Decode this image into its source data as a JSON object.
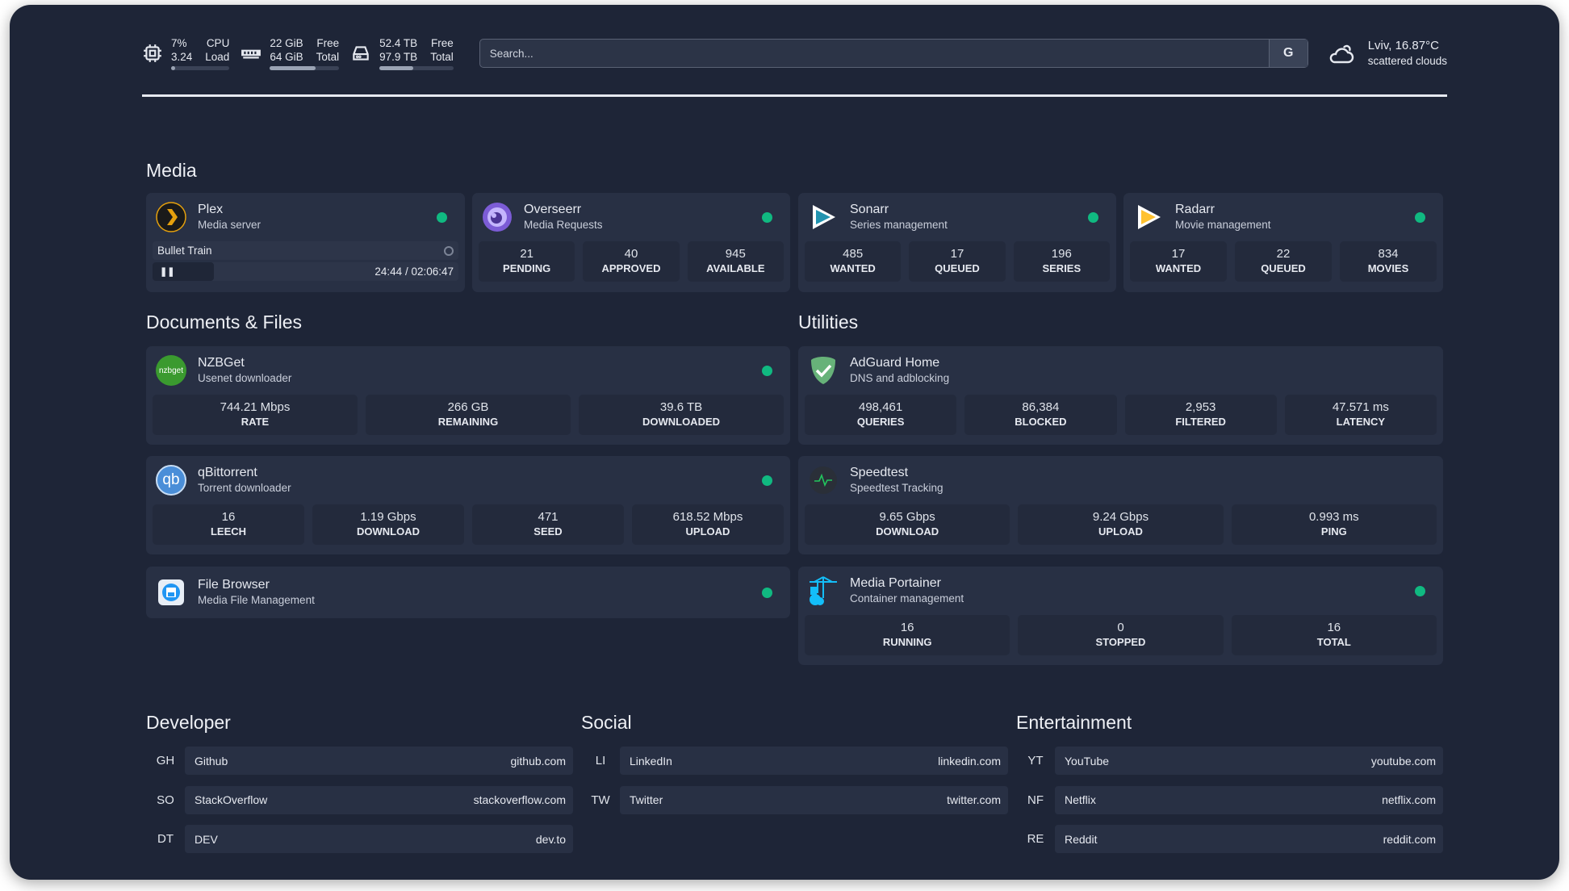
{
  "header": {
    "cpu": {
      "icon": "cpu-icon",
      "value1": "7%",
      "label1": "CPU",
      "value2": "3.24",
      "label2": "Load",
      "percent": 7
    },
    "ram": {
      "icon": "memory-icon",
      "value1": "22 GiB",
      "label1": "Free",
      "value2": "64 GiB",
      "label2": "Total",
      "percent": 66
    },
    "disk": {
      "icon": "disk-icon",
      "value1": "52.4 TB",
      "label1": "Free",
      "value2": "97.9 TB",
      "label2": "Total",
      "percent": 46
    },
    "search": {
      "placeholder": "Search...",
      "engine": "G"
    },
    "weather": {
      "icon": "cloud-icon",
      "location": "Lviv, 16.87°C",
      "condition": "scattered clouds"
    }
  },
  "sections": {
    "media": "Media",
    "documents": "Documents & Files",
    "utilities": "Utilities",
    "developer": "Developer",
    "social": "Social",
    "entertainment": "Entertainment"
  },
  "media": {
    "plex": {
      "title": "Plex",
      "subtitle": "Media server",
      "now_playing": "Bullet Train",
      "time": "24:44 / 02:06:47",
      "progress_percent": 20
    },
    "overseerr": {
      "title": "Overseerr",
      "subtitle": "Media Requests",
      "stats": [
        {
          "v": "21",
          "l": "PENDING"
        },
        {
          "v": "40",
          "l": "APPROVED"
        },
        {
          "v": "945",
          "l": "AVAILABLE"
        }
      ]
    },
    "sonarr": {
      "title": "Sonarr",
      "subtitle": "Series management",
      "stats": [
        {
          "v": "485",
          "l": "WANTED"
        },
        {
          "v": "17",
          "l": "QUEUED"
        },
        {
          "v": "196",
          "l": "SERIES"
        }
      ]
    },
    "radarr": {
      "title": "Radarr",
      "subtitle": "Movie management",
      "stats": [
        {
          "v": "17",
          "l": "WANTED"
        },
        {
          "v": "22",
          "l": "QUEUED"
        },
        {
          "v": "834",
          "l": "MOVIES"
        }
      ]
    }
  },
  "documents": {
    "nzbget": {
      "title": "NZBGet",
      "subtitle": "Usenet downloader",
      "logo": "nzbget",
      "stats": [
        {
          "v": "744.21 Mbps",
          "l": "RATE"
        },
        {
          "v": "266 GB",
          "l": "REMAINING"
        },
        {
          "v": "39.6 TB",
          "l": "DOWNLOADED"
        }
      ]
    },
    "qbittorrent": {
      "title": "qBittorrent",
      "subtitle": "Torrent downloader",
      "logo": "qb",
      "stats": [
        {
          "v": "16",
          "l": "LEECH"
        },
        {
          "v": "1.19 Gbps",
          "l": "DOWNLOAD"
        },
        {
          "v": "471",
          "l": "SEED"
        },
        {
          "v": "618.52 Mbps",
          "l": "UPLOAD"
        }
      ]
    },
    "filebrowser": {
      "title": "File Browser",
      "subtitle": "Media File Management"
    }
  },
  "utilities": {
    "adguard": {
      "title": "AdGuard Home",
      "subtitle": "DNS and adblocking",
      "stats": [
        {
          "v": "498,461",
          "l": "QUERIES"
        },
        {
          "v": "86,384",
          "l": "BLOCKED"
        },
        {
          "v": "2,953",
          "l": "FILTERED"
        },
        {
          "v": "47.571 ms",
          "l": "LATENCY"
        }
      ]
    },
    "speedtest": {
      "title": "Speedtest",
      "subtitle": "Speedtest Tracking",
      "stats": [
        {
          "v": "9.65 Gbps",
          "l": "DOWNLOAD"
        },
        {
          "v": "9.24 Gbps",
          "l": "UPLOAD"
        },
        {
          "v": "0.993 ms",
          "l": "PING"
        }
      ]
    },
    "portainer": {
      "title": "Media Portainer",
      "subtitle": "Container management",
      "stats": [
        {
          "v": "16",
          "l": "RUNNING"
        },
        {
          "v": "0",
          "l": "STOPPED"
        },
        {
          "v": "16",
          "l": "TOTAL"
        }
      ]
    }
  },
  "bookmarks": {
    "developer": [
      {
        "abbr": "GH",
        "name": "Github",
        "url": "github.com"
      },
      {
        "abbr": "SO",
        "name": "StackOverflow",
        "url": "stackoverflow.com"
      },
      {
        "abbr": "DT",
        "name": "DEV",
        "url": "dev.to"
      }
    ],
    "social": [
      {
        "abbr": "LI",
        "name": "LinkedIn",
        "url": "linkedin.com"
      },
      {
        "abbr": "TW",
        "name": "Twitter",
        "url": "twitter.com"
      }
    ],
    "entertainment": [
      {
        "abbr": "YT",
        "name": "YouTube",
        "url": "youtube.com"
      },
      {
        "abbr": "NF",
        "name": "Netflix",
        "url": "netflix.com"
      },
      {
        "abbr": "RE",
        "name": "Reddit",
        "url": "reddit.com"
      }
    ]
  },
  "colors": {
    "background": "#1e2537",
    "card": "#283044",
    "status_ok": "#10b981"
  }
}
